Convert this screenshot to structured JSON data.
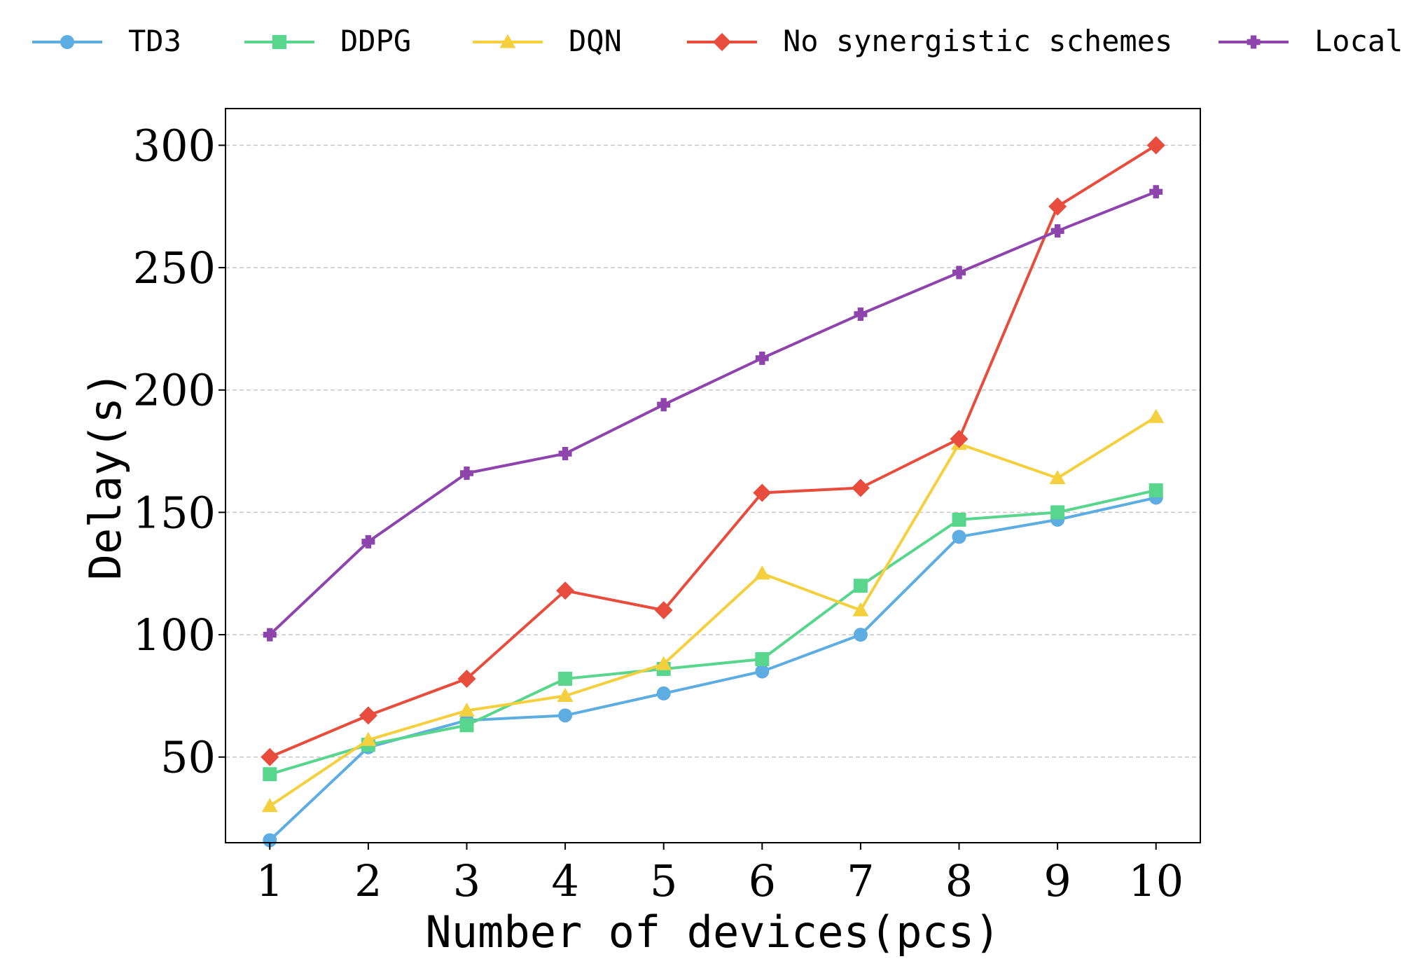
{
  "chart_data": {
    "type": "line",
    "title": "",
    "xlabel": "Number of devices(pcs)",
    "ylabel": "Delay(s)",
    "categories": [
      1,
      2,
      3,
      4,
      5,
      6,
      7,
      8,
      9,
      10
    ],
    "xlim": [
      0.55,
      10.45
    ],
    "ylim": [
      15,
      315
    ],
    "yticks": [
      50,
      100,
      150,
      200,
      250,
      300
    ],
    "grid": "y-dashed",
    "legend_position": "top",
    "series": [
      {
        "name": "TD3",
        "color": "#5dade2",
        "marker": "circle",
        "values": [
          16,
          54,
          65,
          67,
          76,
          85,
          100,
          140,
          147,
          156
        ]
      },
      {
        "name": "DDPG",
        "color": "#58d68d",
        "marker": "square",
        "values": [
          43,
          55,
          63,
          82,
          86,
          90,
          120,
          147,
          150,
          159
        ]
      },
      {
        "name": "DQN",
        "color": "#f4d03f",
        "marker": "triangle",
        "values": [
          30,
          57,
          69,
          75,
          88,
          125,
          110,
          178,
          164,
          189
        ]
      },
      {
        "name": "No synergistic schemes",
        "color": "#e74c3c",
        "marker": "diamond",
        "values": [
          50,
          67,
          82,
          118,
          110,
          158,
          160,
          180,
          275,
          300
        ]
      },
      {
        "name": "Local",
        "color": "#8e44ad",
        "marker": "plus",
        "values": [
          100,
          138,
          166,
          174,
          194,
          213,
          231,
          248,
          265,
          281
        ]
      }
    ]
  }
}
